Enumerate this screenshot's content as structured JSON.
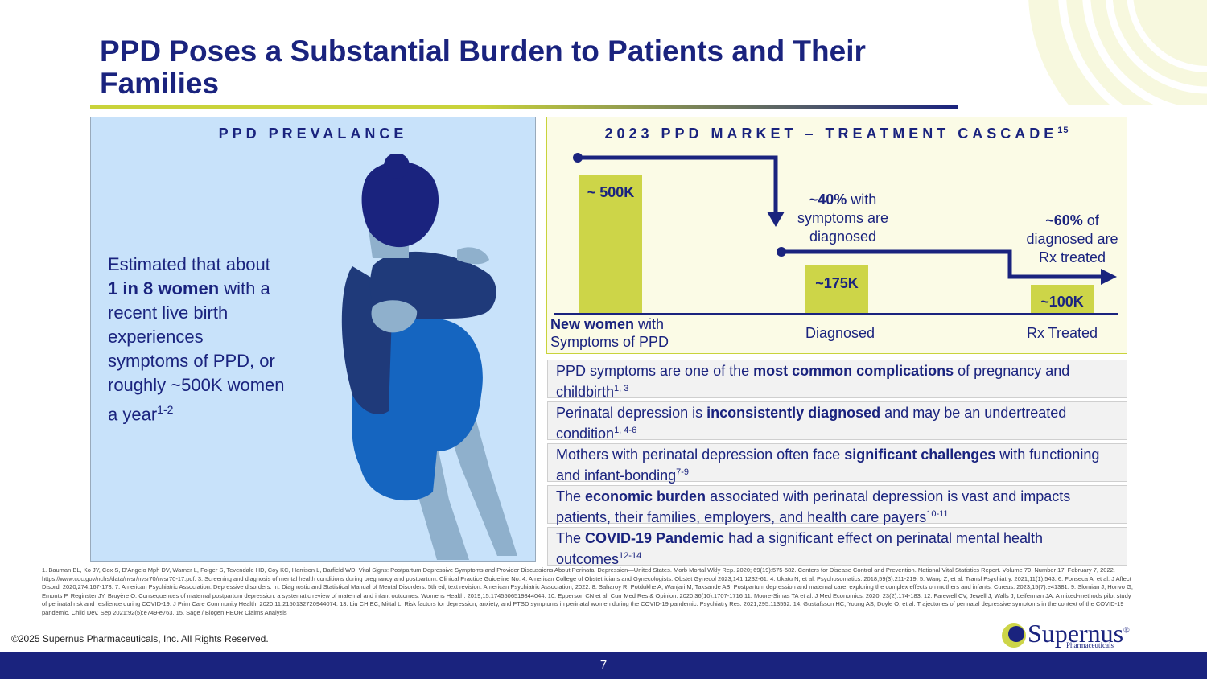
{
  "title": "PPD Poses a Substantial Burden to Patients and Their Families",
  "left_panel": {
    "header": "PPD PREVALANCE",
    "text": {
      "part1": "Estimated that about ",
      "bold": "1 in 8 women",
      "part2": " with a recent live birth experiences symptoms of PPD, or roughly ~500K women a year",
      "sup": "1-2"
    }
  },
  "right_panel": {
    "header": "2023 PPD MARKET – TREATMENT CASCADE",
    "header_sup": "15",
    "colors": {
      "bar": "#cdd548",
      "navy": "#1a237e"
    },
    "chart_data": {
      "type": "bar",
      "categories": [
        "New women with Symptoms of PPD",
        "Diagnosed",
        "Rx Treated"
      ],
      "values": [
        500000,
        175000,
        100000
      ],
      "value_labels": [
        "~ 500K",
        "~175K",
        "~100K"
      ],
      "ylim": [
        0,
        500000
      ]
    },
    "cat1_bold": "New women",
    "cat1_rest": " with Symptoms of PPD",
    "cat2": "Diagnosed",
    "cat3": "Rx Treated",
    "note1": {
      "bold": "~40%",
      "rest": " with symptoms are diagnosed"
    },
    "note2": {
      "bold": "~60%",
      "rest": " of diagnosed are Rx treated"
    }
  },
  "facts": [
    {
      "pre": "PPD symptoms are one of the ",
      "bold": "most common complications",
      "post": " of pregnancy and childbirth",
      "sup": "1, 3"
    },
    {
      "pre": "Perinatal depression is ",
      "bold": "inconsistently diagnosed",
      "post": " and may be an undertreated condition",
      "sup": "1, 4-6"
    },
    {
      "pre": "Mothers with perinatal depression often face ",
      "bold": "significant challenges",
      "post": " with functioning and infant-bonding",
      "sup": "7-9"
    },
    {
      "pre": "The ",
      "bold": "economic burden",
      "post": " associated with perinatal depression is vast and impacts patients, their families, employers, and health care payers",
      "sup": "10-11"
    },
    {
      "pre": "The ",
      "bold": "COVID-19 Pandemic",
      "post": " had a significant effect on perinatal mental health outcomes",
      "sup": "12-14"
    }
  ],
  "references": "1. Bauman BL, Ko JY, Cox S, D'Angelo Mph DV, Warner L, Folger S, Tevendale HD, Coy KC, Harrison L, Barfield WD. Vital Signs: Postpartum Depressive Symptoms and Provider Discussions About Perinatal Depression—United States. Morb Mortal Wkly Rep. 2020; 69(19):575-582. Centers for Disease Control and Prevention. National Vital Statistics Report. Volume 70, Number 17; February 7, 2022. https://www.cdc.gov/nchs/data/nvsr/nvsr70/nvsr70-17.pdf. 3. Screening and diagnosis of mental health conditions during pregnancy and postpartum. Clinical Practice Guideline No. 4. American College of Obstetricians and Gynecologists. Obstet Gynecol 2023;141:1232-61. 4. Ukatu N, et al. Psychosomatics. 2018;59(3):211-219. 5. Wang Z, et al. Transl Psychiatry. 2021;11(1):543. 6. Fonseca A, et al. J Affect Disord. 2020;274:167-173. 7. American Psychiatric Association. Depressive disorders. In: Diagnostic and Statistical Manual of Mental Disorders. 5th ed, text revision. American Psychiatric Association; 2022. 8. Saharoy R, Potdukhe A, Wanjari M, Taksande AB. Postpartum depression and maternal care: exploring the complex effects on mothers and infants. Cureus. 2023;15(7):e41381. 9. Slomian J, Honvo G, Emonts P, Reginster JY, Bruyère O. Consequences of maternal postpartum depression: a systematic review of maternal and infant outcomes. Womens Health. 2019;15:1745506519844044. 10. Epperson CN et al. Curr Med Res & Opinion. 2020;36(10):1707-1716 11. Moore-Simas TA et al. J Med Economics. 2020; 23(2):174-183. 12. Farewell CV, Jewell J, Walls J, Leiferman JA. A mixed-methods pilot study of perinatal risk and resilience during COVID-19. J Prim Care Community Health. 2020;11:2150132720944074. 13. Liu CH EC, Mittal L. Risk factors for depression, anxiety, and PTSD symptoms in perinatal women during the COVID-19 pandemic. Psychiatry Res. 2021;295:113552. 14. Gustafsson HC, Young AS, Doyle O, et al. Trajectories of perinatal depressive symptoms in the context of the COVID-19 pandemic. Child Dev. Sep 2021;92(5):e749-e763. 15. Sage / Biogen HEOR Claims Analysis",
  "copyright": "©2025 Supernus Pharmaceuticals, Inc. All Rights Reserved.",
  "logo": {
    "name": "Supernus",
    "reg": "®",
    "sub": "Pharmaceuticals"
  },
  "page_number": "7"
}
